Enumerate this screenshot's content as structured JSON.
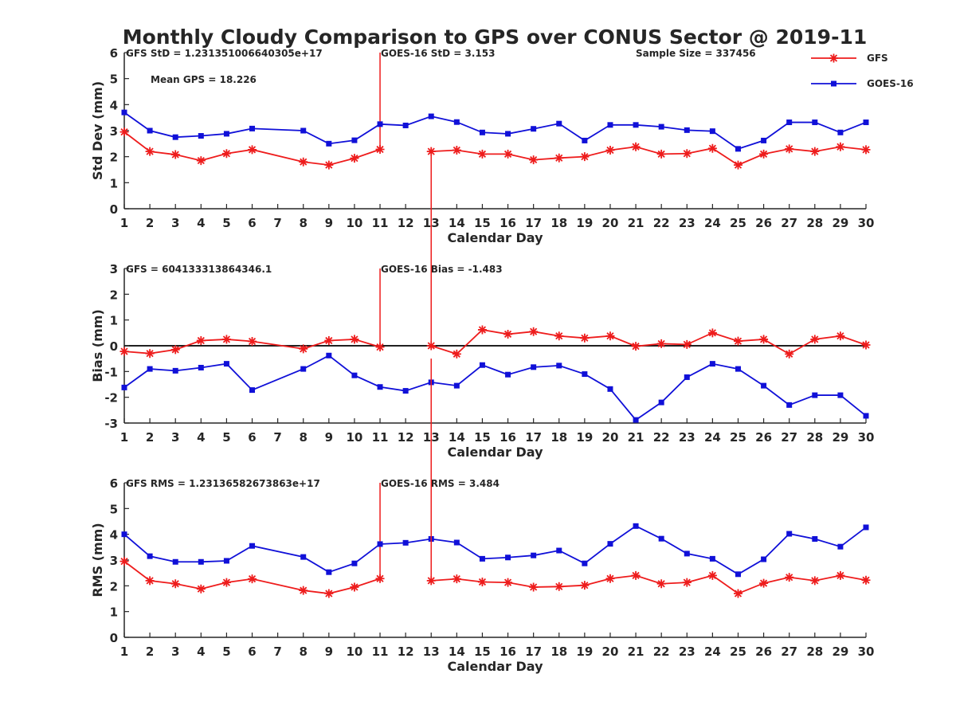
{
  "title": "Monthly Cloudy Comparison to GPS over CONUS Sector @ 2019-11",
  "colors": {
    "gfs": "#ee1c1c",
    "goes": "#1010d8",
    "axis": "#262626"
  },
  "legend": {
    "placement": "top-right",
    "entries": [
      {
        "label": "GFS",
        "color": "#ee1c1c",
        "marker": "asterisk"
      },
      {
        "label": "GOES-16",
        "color": "#1010d8",
        "marker": "square"
      }
    ]
  },
  "chart_data": [
    {
      "type": "line",
      "xlabel": "Calendar Day",
      "ylabel": "Std Dev (mm)",
      "xlim": [
        1,
        30
      ],
      "ylim": [
        0,
        6
      ],
      "xticks": [
        1,
        2,
        3,
        4,
        5,
        6,
        7,
        8,
        9,
        10,
        11,
        12,
        13,
        14,
        15,
        16,
        17,
        18,
        19,
        20,
        21,
        22,
        23,
        24,
        25,
        26,
        27,
        28,
        29,
        30
      ],
      "yticks": [
        0,
        1,
        2,
        3,
        4,
        5,
        6
      ],
      "annotations": [
        {
          "text": "GFS StD = 1.231351006640305e+17",
          "position": "top-left"
        },
        {
          "text": "GOES-16 StD = 3.153",
          "position": "top-middle"
        },
        {
          "text": "Sample Size = 337456",
          "position": "top-right"
        },
        {
          "text": "Mean GPS = 18.226",
          "position": "upper-left"
        }
      ],
      "spikes": [
        {
          "x": 11,
          "from": 2.28,
          "to": 6,
          "series": "GFS"
        }
      ],
      "series": [
        {
          "name": "GFS",
          "color": "#ee1c1c",
          "marker": "asterisk",
          "segments": [
            {
              "x": [
                1,
                2,
                3,
                4,
                5,
                6,
                8,
                9,
                10,
                11
              ],
              "y": [
                2.95,
                2.2,
                2.08,
                1.85,
                2.12,
                2.27,
                1.8,
                1.68,
                1.94,
                2.28
              ]
            },
            {
              "x": [
                13,
                14,
                15,
                16,
                17,
                18,
                19,
                20,
                21,
                22,
                23,
                24,
                25,
                26,
                27,
                28,
                29,
                30
              ],
              "y": [
                2.2,
                2.25,
                2.1,
                2.1,
                1.88,
                1.95,
                2.0,
                2.25,
                2.38,
                2.1,
                2.12,
                2.32,
                1.68,
                2.1,
                2.3,
                2.2,
                2.38,
                2.27
              ]
            }
          ]
        },
        {
          "name": "GOES-16",
          "color": "#1010d8",
          "marker": "square",
          "segments": [
            {
              "x": [
                1,
                2,
                3,
                4,
                5,
                6,
                8,
                9,
                10,
                11,
                12,
                13,
                14,
                15,
                16,
                17,
                18,
                19,
                20,
                21,
                22,
                23,
                24,
                25,
                26,
                27,
                28,
                29,
                30
              ],
              "y": [
                3.7,
                3.0,
                2.75,
                2.8,
                2.88,
                3.08,
                3.0,
                2.5,
                2.63,
                3.25,
                3.2,
                3.55,
                3.33,
                2.93,
                2.88,
                3.07,
                3.27,
                2.62,
                3.22,
                3.22,
                3.15,
                3.02,
                2.98,
                2.3,
                2.62,
                3.32,
                3.32,
                2.93,
                3.32
              ]
            }
          ]
        }
      ]
    },
    {
      "type": "line",
      "xlabel": "Calendar Day",
      "ylabel": "Bias (mm)",
      "xlim": [
        1,
        30
      ],
      "ylim": [
        -3,
        3
      ],
      "xticks": [
        1,
        2,
        3,
        4,
        5,
        6,
        7,
        8,
        9,
        10,
        11,
        12,
        13,
        14,
        15,
        16,
        17,
        18,
        19,
        20,
        21,
        22,
        23,
        24,
        25,
        26,
        27,
        28,
        29,
        30
      ],
      "yticks": [
        -3,
        -2,
        -1,
        0,
        1,
        2,
        3
      ],
      "zero_line": true,
      "annotations": [
        {
          "text": "GFS = 604133313864346.1",
          "position": "top-left"
        },
        {
          "text": "GOES-16 Bias = -1.483",
          "position": "top-middle"
        }
      ],
      "spikes": [
        {
          "x": 11,
          "from": -0.05,
          "to": 3,
          "series": "GFS"
        }
      ],
      "series": [
        {
          "name": "GFS",
          "color": "#ee1c1c",
          "marker": "asterisk",
          "segments": [
            {
              "x": [
                1,
                2,
                3,
                4,
                5,
                6,
                8,
                9,
                10,
                11
              ],
              "y": [
                -0.22,
                -0.3,
                -0.15,
                0.2,
                0.25,
                0.17,
                -0.12,
                0.2,
                0.25,
                -0.05
              ]
            },
            {
              "x": [
                13,
                14,
                15,
                16,
                17,
                18,
                19,
                20,
                21,
                22,
                23,
                24,
                25,
                26,
                27,
                28,
                29,
                30
              ],
              "y": [
                0.0,
                -0.32,
                0.62,
                0.45,
                0.55,
                0.38,
                0.3,
                0.38,
                -0.02,
                0.08,
                0.05,
                0.5,
                0.18,
                0.25,
                -0.32,
                0.25,
                0.38,
                0.03
              ]
            }
          ]
        },
        {
          "name": "GOES-16",
          "color": "#1010d8",
          "marker": "square",
          "segments": [
            {
              "x": [
                1,
                2,
                3,
                4,
                5,
                6,
                8,
                9,
                10,
                11,
                12,
                13,
                14,
                15,
                16,
                17,
                18,
                19,
                20,
                21,
                22,
                23,
                24,
                25,
                26,
                27,
                28,
                29,
                30
              ],
              "y": [
                -1.62,
                -0.9,
                -0.97,
                -0.85,
                -0.7,
                -1.72,
                -0.9,
                -0.38,
                -1.15,
                -1.6,
                -1.75,
                -1.42,
                -1.55,
                -0.75,
                -1.12,
                -0.83,
                -0.77,
                -1.1,
                -1.68,
                -2.88,
                -2.2,
                -1.22,
                -0.7,
                -0.9,
                -1.55,
                -2.3,
                -1.92,
                -1.92,
                -2.72
              ]
            }
          ]
        }
      ]
    },
    {
      "type": "line",
      "xlabel": "Calendar Day",
      "ylabel": "RMS (mm)",
      "xlim": [
        1,
        30
      ],
      "ylim": [
        0,
        6
      ],
      "xticks": [
        1,
        2,
        3,
        4,
        5,
        6,
        7,
        8,
        9,
        10,
        11,
        12,
        13,
        14,
        15,
        16,
        17,
        18,
        19,
        20,
        21,
        22,
        23,
        24,
        25,
        26,
        27,
        28,
        29,
        30
      ],
      "yticks": [
        0,
        1,
        2,
        3,
        4,
        5,
        6
      ],
      "annotations": [
        {
          "text": "GFS RMS = 1.23136582673863e+17",
          "position": "top-left"
        },
        {
          "text": "GOES-16 RMS = 3.484",
          "position": "top-middle"
        }
      ],
      "spikes": [
        {
          "x": 11,
          "from": 2.28,
          "to": 6,
          "series": "GFS"
        }
      ],
      "series": [
        {
          "name": "GFS",
          "color": "#ee1c1c",
          "marker": "asterisk",
          "segments": [
            {
              "x": [
                1,
                2,
                3,
                4,
                5,
                6,
                8,
                9,
                10,
                11
              ],
              "y": [
                2.95,
                2.2,
                2.08,
                1.88,
                2.13,
                2.27,
                1.82,
                1.7,
                1.95,
                2.28
              ]
            },
            {
              "x": [
                13,
                14,
                15,
                16,
                17,
                18,
                19,
                20,
                21,
                22,
                23,
                24,
                25,
                26,
                27,
                28,
                29,
                30
              ],
              "y": [
                2.2,
                2.27,
                2.15,
                2.13,
                1.95,
                1.97,
                2.02,
                2.28,
                2.4,
                2.08,
                2.13,
                2.4,
                1.7,
                2.1,
                2.33,
                2.2,
                2.4,
                2.22
              ]
            }
          ]
        },
        {
          "name": "GOES-16",
          "color": "#1010d8",
          "marker": "square",
          "segments": [
            {
              "x": [
                1,
                2,
                3,
                4,
                5,
                6,
                8,
                9,
                10,
                11,
                12,
                13,
                14,
                15,
                16,
                17,
                18,
                19,
                20,
                21,
                22,
                23,
                24,
                25,
                26,
                27,
                28,
                29,
                30
              ],
              "y": [
                4.0,
                3.15,
                2.93,
                2.93,
                2.97,
                3.55,
                3.12,
                2.53,
                2.87,
                3.62,
                3.67,
                3.82,
                3.68,
                3.05,
                3.1,
                3.18,
                3.37,
                2.87,
                3.63,
                4.32,
                3.83,
                3.25,
                3.05,
                2.45,
                3.03,
                4.02,
                3.82,
                3.52,
                4.27
              ]
            }
          ]
        }
      ]
    }
  ]
}
